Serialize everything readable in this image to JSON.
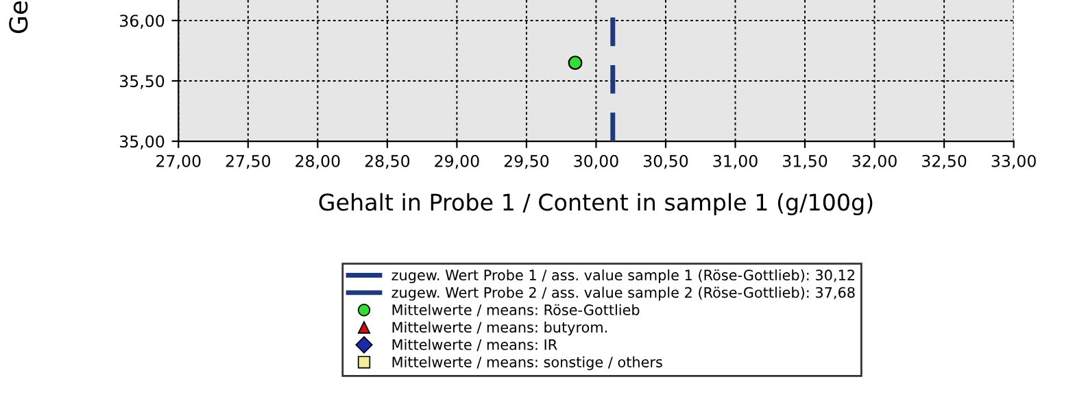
{
  "chart_data": {
    "type": "scatter",
    "xlabel": "Gehalt in Probe 1 / Content in sample 1 (g/100g)",
    "ylabel": "Ge",
    "xlim": [
      27,
      33
    ],
    "ylim": [
      35,
      36.17
    ],
    "xticks": [
      {
        "value": 27,
        "label": "27,00"
      },
      {
        "value": 27.5,
        "label": "27,50"
      },
      {
        "value": 28,
        "label": "28,00"
      },
      {
        "value": 28.5,
        "label": "28,50"
      },
      {
        "value": 29,
        "label": "29,00"
      },
      {
        "value": 29.5,
        "label": "29,50"
      },
      {
        "value": 30,
        "label": "30,00"
      },
      {
        "value": 30.5,
        "label": "30,50"
      },
      {
        "value": 31,
        "label": "31,00"
      },
      {
        "value": 31.5,
        "label": "31,50"
      },
      {
        "value": 32,
        "label": "32,00"
      },
      {
        "value": 32.5,
        "label": "32,50"
      },
      {
        "value": 33,
        "label": "33,00"
      }
    ],
    "yticks": [
      {
        "value": 35,
        "label": "35,00"
      },
      {
        "value": 35.5,
        "label": "35,50"
      },
      {
        "value": 36,
        "label": "36,00"
      }
    ],
    "grid": true,
    "legend": "bottom",
    "ref_lines": [
      {
        "axis": "x",
        "value": 30.12,
        "color": "#1f3a7a",
        "line_style": "dashed"
      }
    ],
    "series": [
      {
        "type": "line",
        "name": "zugew. Wert Probe 1 / ass. value sample 1 (Röse-Gottlieb): 30,12",
        "color": "#1f3a7a",
        "line_style": "solid"
      },
      {
        "type": "line",
        "name": "zugew. Wert Probe 2 / ass. value sample 2 (Röse-Gottlieb): 37,68",
        "color": "#1f3a7a",
        "line_style": "solid"
      },
      {
        "name": "Mittelwerte / means: Röse-Gottlieb",
        "color": "#33dd33",
        "marker": "circle",
        "x": [
          29.85
        ],
        "values": [
          35.65
        ]
      },
      {
        "name": "Mittelwerte / means: butyrom.",
        "color": "#cc1111",
        "marker": "triangle"
      },
      {
        "name": "Mittelwerte / means: IR",
        "color": "#1a2aa8",
        "marker": "diamond"
      },
      {
        "name": "Mittelwerte / means: sonstige / others",
        "color": "#f2ee99",
        "marker": "square"
      }
    ]
  }
}
